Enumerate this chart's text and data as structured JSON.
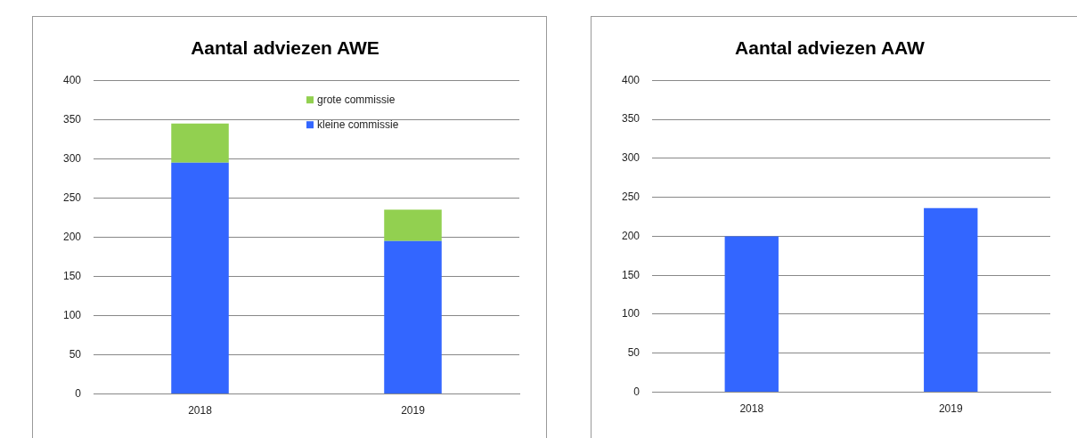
{
  "chart_data": [
    {
      "type": "bar",
      "title": "Aantal adviezen AWE",
      "categories": [
        "2018",
        "2019"
      ],
      "stacked": true,
      "series": [
        {
          "name": "kleine commissie",
          "color": "#3366ff",
          "values": [
            295,
            195
          ]
        },
        {
          "name": "grote commissie",
          "color": "#92d050",
          "values": [
            50,
            40
          ]
        }
      ],
      "ylim": [
        0,
        400
      ],
      "yticks": [
        0,
        50,
        100,
        150,
        200,
        250,
        300,
        350,
        400
      ],
      "grid": "y",
      "legend": "top right"
    },
    {
      "type": "bar",
      "title": "Aantal adviezen AAW",
      "categories": [
        "2018",
        "2019"
      ],
      "series": [
        {
          "color": "#3366ff",
          "values": [
            200,
            236
          ]
        }
      ],
      "ylim": [
        0,
        400
      ],
      "yticks": [
        0,
        50,
        100,
        150,
        200,
        250,
        300,
        350,
        400
      ],
      "grid": "y"
    }
  ]
}
